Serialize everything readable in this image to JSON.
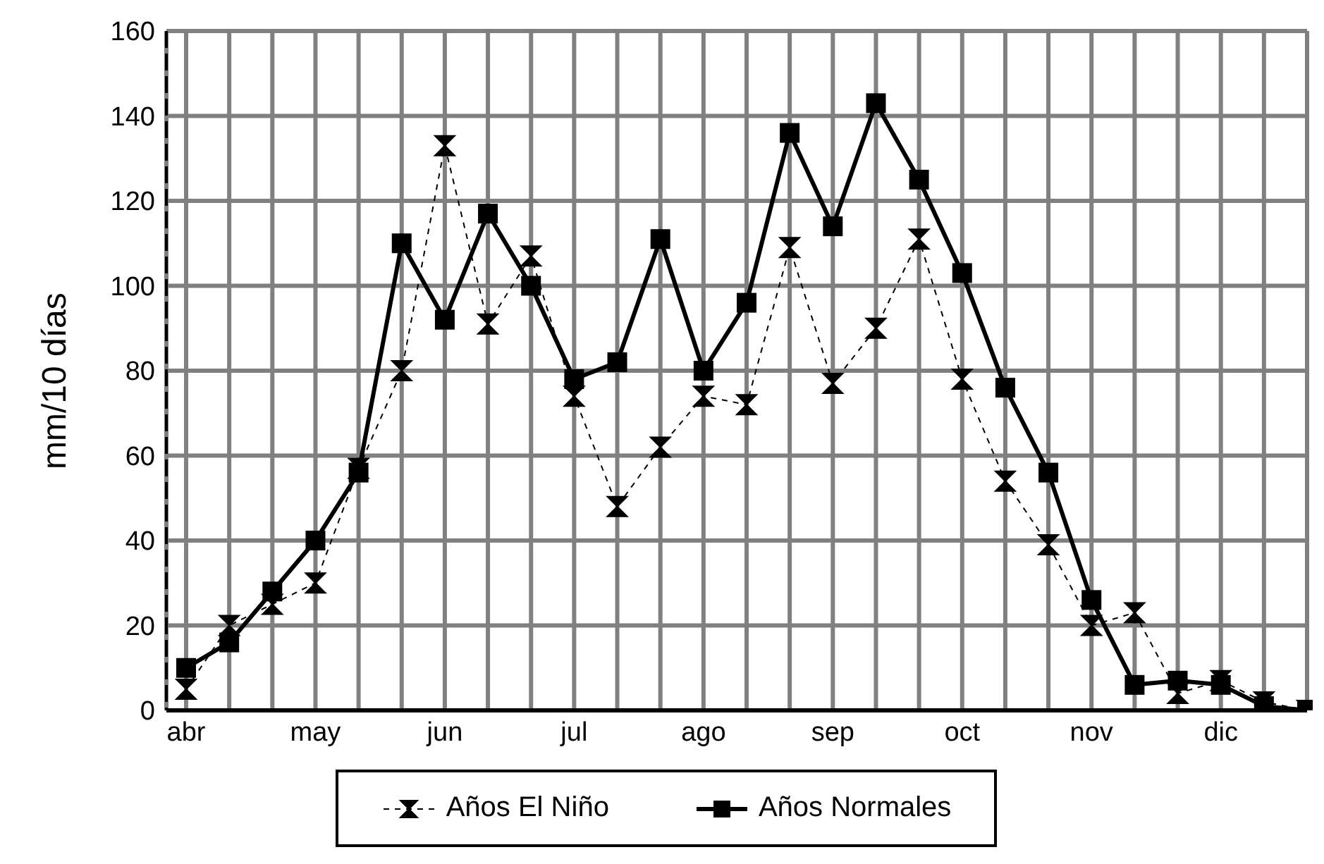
{
  "chart_data": {
    "type": "line",
    "ylabel": "mm/10 días",
    "categories": [
      "abr",
      null,
      null,
      "may",
      null,
      null,
      "jun",
      null,
      null,
      "jul",
      null,
      null,
      "ago",
      null,
      null,
      "sep",
      null,
      null,
      "oct",
      null,
      null,
      "nov",
      null,
      null,
      "dic",
      null,
      null
    ],
    "series": [
      {
        "name": "Años El Niño",
        "color": "#000000",
        "marker": "diamond",
        "line_style": "dashed",
        "values": [
          5,
          20,
          25,
          30,
          57,
          80,
          133,
          91,
          107,
          74,
          48,
          62,
          74,
          72,
          109,
          77,
          90,
          111,
          78,
          54,
          39,
          20,
          23,
          4,
          7,
          2,
          0
        ]
      },
      {
        "name": "Años Normales",
        "color": "#000000",
        "marker": "square",
        "line_style": "solid",
        "values": [
          10,
          16,
          28,
          40,
          56,
          110,
          92,
          117,
          100,
          78,
          82,
          111,
          80,
          96,
          136,
          114,
          143,
          125,
          103,
          76,
          56,
          26,
          6,
          7,
          6,
          1,
          0
        ]
      }
    ],
    "ylim": [
      0,
      160
    ],
    "yticks": [
      0,
      20,
      40,
      60,
      80,
      100,
      120,
      140,
      160
    ],
    "grid": true,
    "legend": "bottom"
  }
}
